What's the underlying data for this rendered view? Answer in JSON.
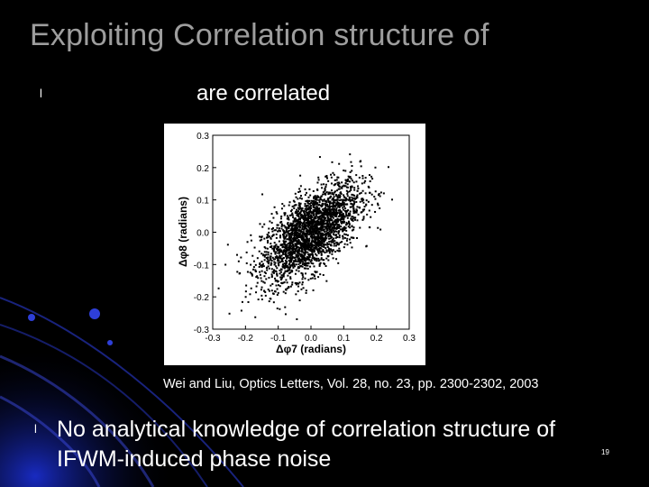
{
  "slide": {
    "title": "Exploiting Correlation structure of",
    "bullet_symbol": "l",
    "bullet1_text": "are correlated",
    "citation": "Wei and Liu, Optics Letters, Vol. 28, no. 23, pp. 2300-2302, 2003",
    "bullet2_line1": "No analytical knowledge of correlation structure of",
    "bullet2_line2": "IFWM-induced phase noise",
    "slide_number": "19",
    "colors": {
      "background": "#000000",
      "title": "#9e9e9e",
      "accent": "#1a2fc8"
    }
  },
  "chart_data": {
    "type": "scatter",
    "xlabel": "Δφ7 (radians)",
    "ylabel": "Δφ8 (radians)",
    "xlim": [
      -0.3,
      0.3
    ],
    "ylim": [
      -0.3,
      0.3
    ],
    "x_ticks": [
      "-0.3",
      "-0.2",
      "-0.1",
      "0.0",
      "0.1",
      "0.2",
      "0.3"
    ],
    "y_ticks": [
      "0.3",
      "0.2",
      "0.1",
      "0.0",
      "-0.1",
      "-0.2",
      "-0.3"
    ],
    "grid": false
  }
}
